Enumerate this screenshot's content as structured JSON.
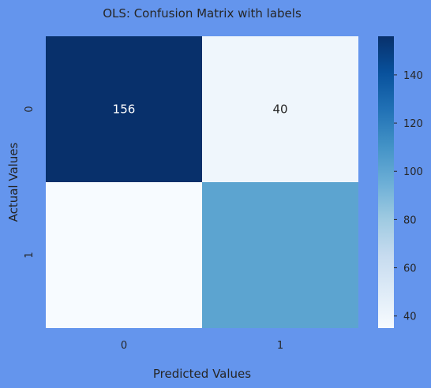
{
  "chart_data": {
    "type": "heatmap",
    "title": "OLS: Confusion Matrix with labels",
    "xlabel": "Predicted Values",
    "ylabel": "Actual Values",
    "x_ticks": [
      "0",
      "1"
    ],
    "y_ticks": [
      "0",
      "1"
    ],
    "values": [
      [
        156,
        40
      ],
      [
        35,
        101
      ]
    ],
    "cell_labels": [
      [
        "156",
        "40"
      ],
      [
        "",
        ""
      ]
    ],
    "colormap": "Blues",
    "colorbar": {
      "range": [
        35,
        156
      ],
      "ticks": [
        40,
        60,
        80,
        100,
        120,
        140
      ]
    },
    "background_color": "#6495ED"
  }
}
